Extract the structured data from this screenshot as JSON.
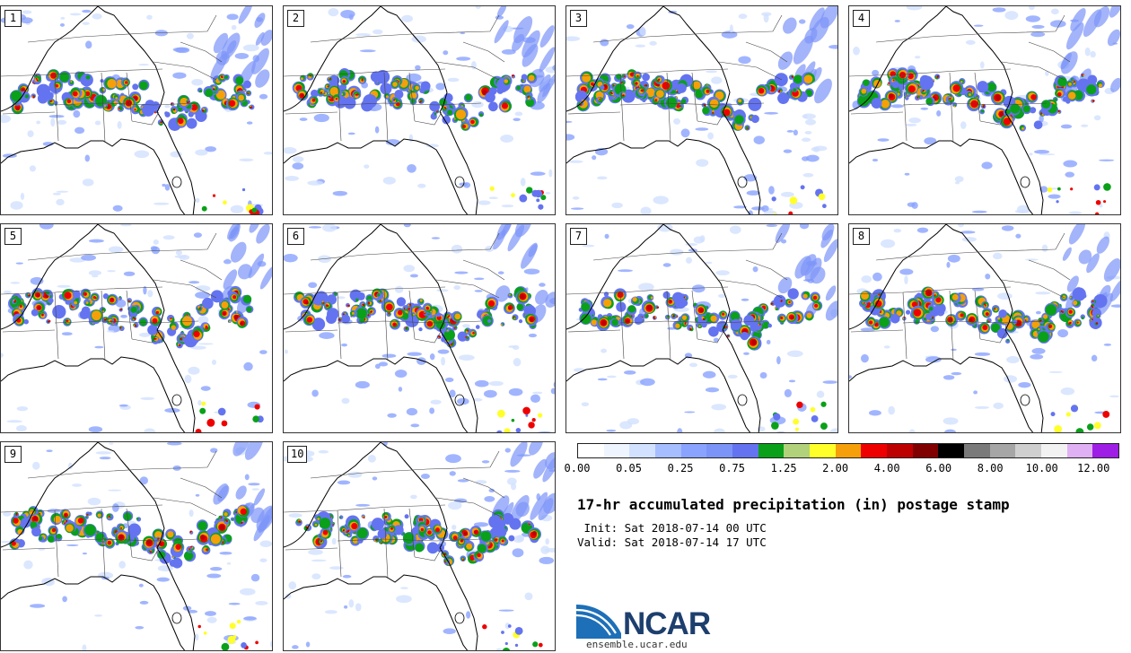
{
  "panels": [
    {
      "label": "1"
    },
    {
      "label": "2"
    },
    {
      "label": "3"
    },
    {
      "label": "4"
    },
    {
      "label": "5"
    },
    {
      "label": "6"
    },
    {
      "label": "7"
    },
    {
      "label": "8"
    },
    {
      "label": "9"
    },
    {
      "label": "10"
    }
  ],
  "colorbar": {
    "colors": [
      "#ffffff",
      "#eef5ff",
      "#d2e1ff",
      "#a6bdff",
      "#8aa3ff",
      "#7c94f8",
      "#6474f0",
      "#0aa01a",
      "#b1d27a",
      "#ffff2a",
      "#f5a00a",
      "#ee0000",
      "#bd0000",
      "#800000",
      "#000000",
      "#7a7a7a",
      "#a6a6a6",
      "#cfcfcf",
      "#f2f2f2",
      "#e0b0f4",
      "#9f1ee6"
    ],
    "tick_labels": [
      "0.00",
      "0.05",
      "0.25",
      "0.75",
      "1.25",
      "2.00",
      "4.00",
      "6.00",
      "8.00",
      "10.00",
      "12.00"
    ]
  },
  "title": "17-hr accumulated precipitation (in) postage stamp",
  "init_line": " Init: Sat 2018-07-14 00 UTC",
  "valid_line": "Valid: Sat 2018-07-14 17 UTC",
  "logo": {
    "text": "NCAR",
    "url": "ensemble.ucar.edu",
    "colors": {
      "blue": "#1d6fb8",
      "navy": "#1d3f6e"
    }
  }
}
